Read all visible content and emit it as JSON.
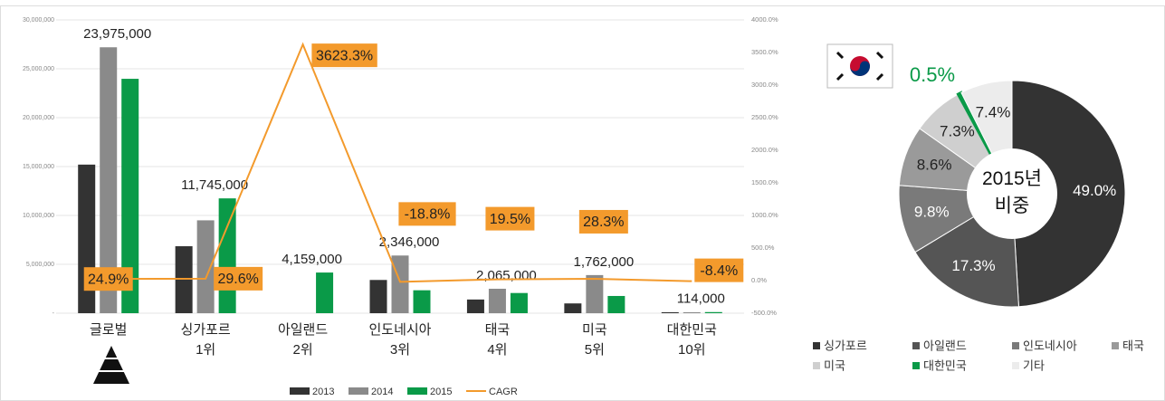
{
  "chart_data": [
    {
      "type": "bar-line",
      "categories": [
        "글로벌",
        "싱가포르\n1위",
        "아일랜드\n2위",
        "인도네시아\n3위",
        "태국\n4위",
        "미국\n5위",
        "대한민국\n10위"
      ],
      "series": [
        {
          "name": "2013",
          "color": "#333333",
          "values": [
            15200000,
            6850000,
            null,
            3400000,
            1400000,
            1000000,
            100000
          ]
        },
        {
          "name": "2014",
          "color": "#8a8a8a",
          "values": [
            27200000,
            9500000,
            null,
            5900000,
            2500000,
            3900000,
            100000
          ]
        },
        {
          "name": "2015",
          "color": "#0a9a48",
          "values": [
            23975000,
            11745000,
            4159000,
            2346000,
            2065000,
            1762000,
            114000
          ],
          "value_labels": [
            "23,975,000",
            "11,745,000",
            "4,159,000",
            "2,346,000",
            "2,065,000",
            "1,762,000",
            "114,000"
          ]
        },
        {
          "name": "CAGR",
          "color": "#f39a2c",
          "axis": "y2",
          "values": [
            24.9,
            29.6,
            3623.3,
            -18.8,
            19.5,
            28.3,
            -8.4
          ],
          "value_labels": [
            "24.9%",
            "29.6%",
            "3623.3%",
            "-18.8%",
            "19.5%",
            "28.3%",
            "-8.4%"
          ]
        }
      ],
      "ylim": [
        0,
        30000000
      ],
      "yticks": [
        {
          "value": 0,
          "label": "-"
        },
        {
          "value": 5000000,
          "label": "5,000,000"
        },
        {
          "value": 10000000,
          "label": "10,000,000"
        },
        {
          "value": 15000000,
          "label": "15,000,000"
        },
        {
          "value": 20000000,
          "label": "20,000,000"
        },
        {
          "value": 25000000,
          "label": "25,000,000"
        },
        {
          "value": 30000000,
          "label": "30,000,000"
        }
      ],
      "y2lim": [
        -500,
        4000
      ],
      "y2ticks": [
        {
          "value": -500,
          "label": "-500.0%"
        },
        {
          "value": 0,
          "label": "0.0%"
        },
        {
          "value": 500,
          "label": "500.0%"
        },
        {
          "value": 1000,
          "label": "1000.0%"
        },
        {
          "value": 1500,
          "label": "1500.0%"
        },
        {
          "value": 2000,
          "label": "2000.0%"
        },
        {
          "value": 2500,
          "label": "2500.0%"
        },
        {
          "value": 3000,
          "label": "3000.0%"
        },
        {
          "value": 3500,
          "label": "3500.0%"
        },
        {
          "value": 4000,
          "label": "4000.0%"
        }
      ],
      "grid": true,
      "legend": "bottom"
    },
    {
      "type": "pie",
      "center_label": "2015년\n비중",
      "categories": [
        "싱가포르",
        "아일랜드",
        "인도네시아",
        "태국",
        "미국",
        "대한민국",
        "기타"
      ],
      "values": [
        49.0,
        17.3,
        9.8,
        8.6,
        7.3,
        0.5,
        7.4
      ],
      "value_labels": [
        "49.0%",
        "17.3%",
        "9.8%",
        "8.6%",
        "7.3%",
        "0.5%",
        "7.4%"
      ],
      "colors": [
        "#333333",
        "#555555",
        "#7a7a7a",
        "#9a9a9a",
        "#cfcfcf",
        "#0a9a48",
        "#ececec"
      ],
      "legend": "bottom"
    }
  ]
}
